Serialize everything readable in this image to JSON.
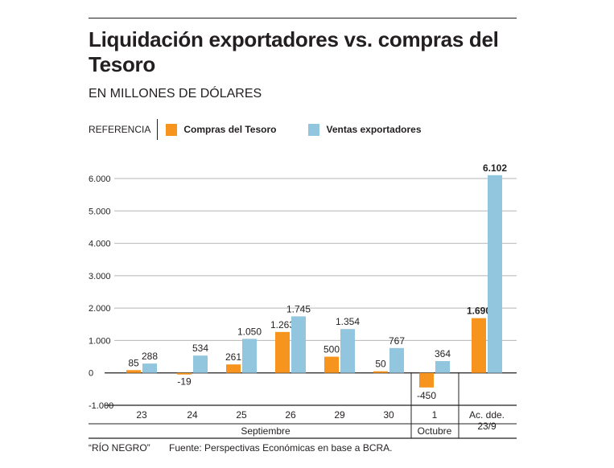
{
  "title": "Liquidación exportadores vs. compras del Tesoro",
  "subtitle": "EN MILLONES DE DÓLARES",
  "legend": {
    "label": "REFERENCIA",
    "items": [
      {
        "name": "Compras del Tesoro",
        "color": "#f7941d"
      },
      {
        "name": "Ventas exportadores",
        "color": "#92c5de"
      }
    ]
  },
  "footer": {
    "credit": "“RÍO NEGRO”",
    "source": "Fuente: Perspectivas Económicas en base a BCRA."
  },
  "chart_data": {
    "type": "bar",
    "title": "Liquidación exportadores vs. compras del Tesoro",
    "subtitle": "EN MILLONES DE DÓLARES",
    "xlabel": "",
    "ylabel": "",
    "ylim": [
      -1000,
      6000
    ],
    "yticks": [
      6000,
      5000,
      4000,
      3000,
      2000,
      1000,
      0,
      -1000
    ],
    "ytick_labels": [
      "6.000",
      "5.000",
      "4.000",
      "3.000",
      "2.000",
      "1.000",
      "0",
      "-1.000"
    ],
    "grid": true,
    "legend_position": "top-left",
    "categories": [
      "23",
      "24",
      "25",
      "26",
      "29",
      "30",
      "1",
      "Ac. dde. 23/9"
    ],
    "category_groups": [
      {
        "label": "Septiembre",
        "span": 6
      },
      {
        "label": "Octubre",
        "span": 1
      }
    ],
    "series": [
      {
        "name": "Compras del Tesoro",
        "color": "#f7941d",
        "values": [
          85,
          -19,
          261,
          1263,
          500,
          50,
          -450,
          1690
        ],
        "labels": [
          "85",
          "-19",
          "261",
          "1.263",
          "500",
          "50",
          "-450",
          "1.690"
        ]
      },
      {
        "name": "Ventas exportadores",
        "color": "#92c5de",
        "values": [
          288,
          534,
          1050,
          1745,
          1354,
          767,
          364,
          6102
        ],
        "labels": [
          "288",
          "534",
          "1.050",
          "1.745",
          "1.354",
          "767",
          "364",
          "6.102"
        ]
      }
    ]
  }
}
